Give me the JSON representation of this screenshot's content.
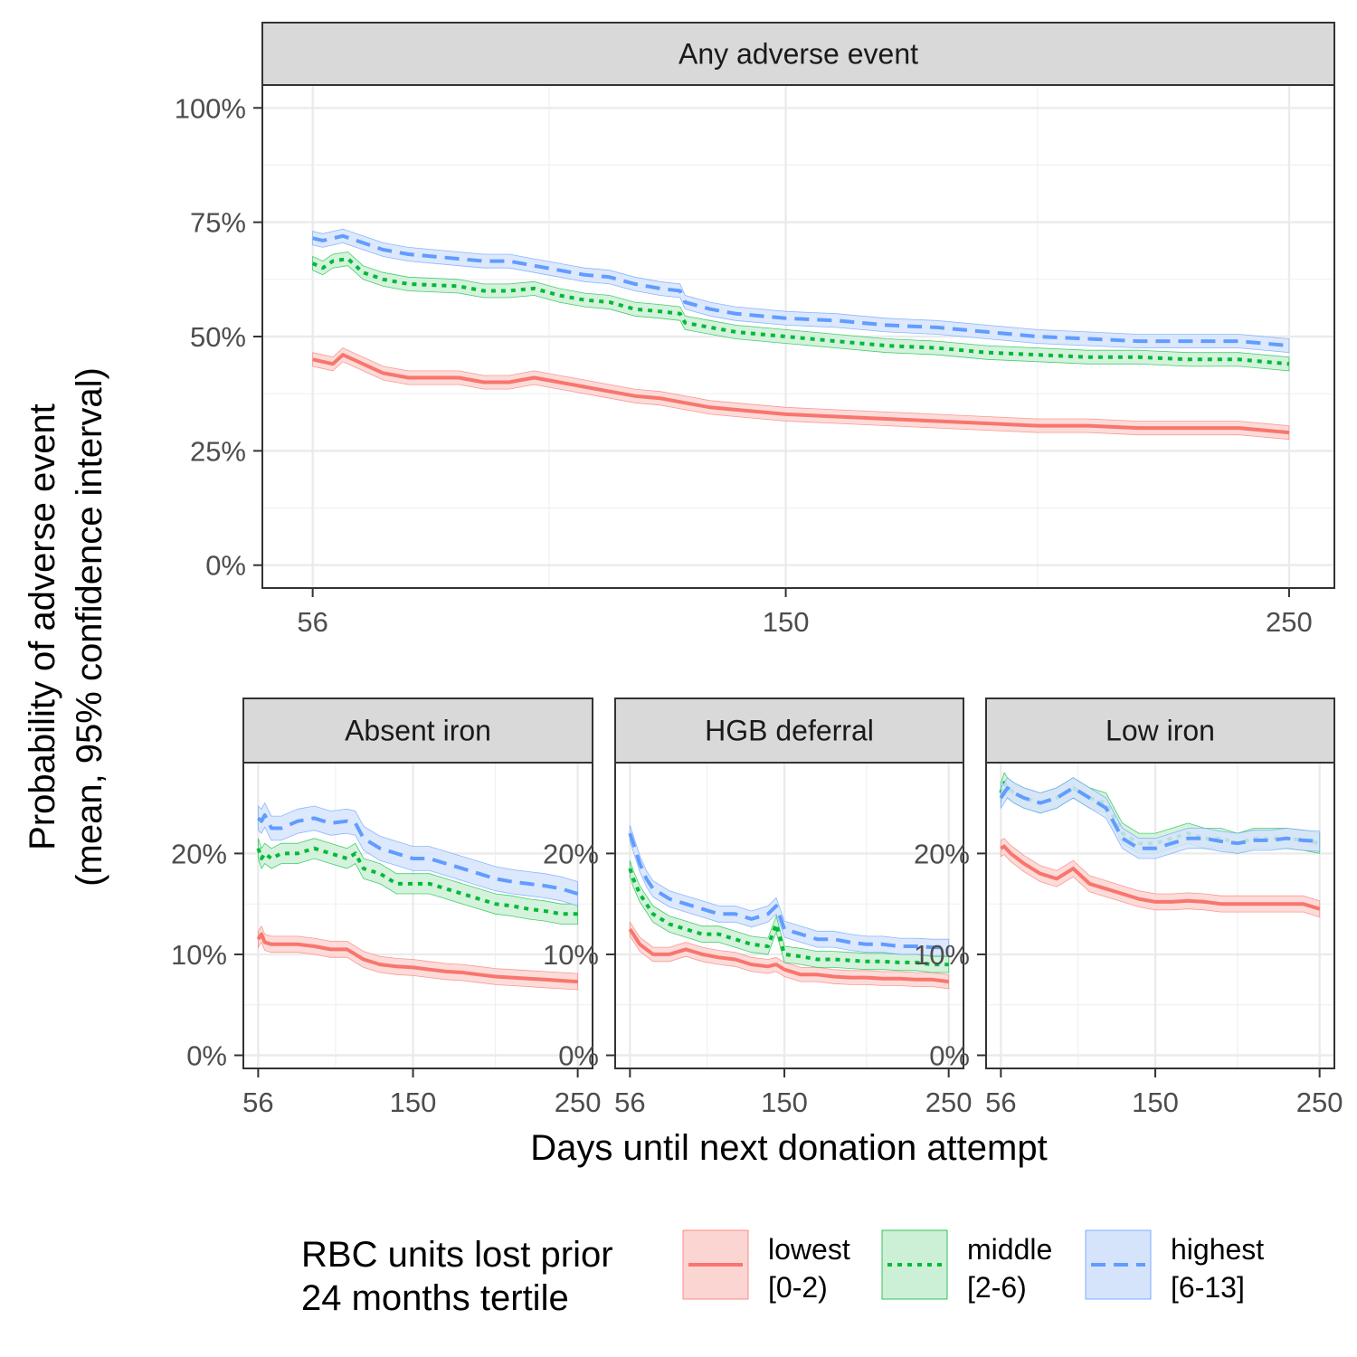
{
  "chart_data": {
    "type": "line",
    "ylabel_lines": [
      "Probability of adverse event",
      "(mean, 95% confidence interval)"
    ],
    "xlabel": "Days until next donation attempt",
    "x_ticks": [
      56,
      150,
      250
    ],
    "legend": {
      "title_lines": [
        "RBC units lost prior",
        "24 months tertile"
      ],
      "placement": "bottom",
      "entries": [
        {
          "key": "lowest",
          "label_lines": [
            "lowest",
            "[0-2)"
          ],
          "color": "#F8766D",
          "fill": "#fbd5d2",
          "dash": "solid"
        },
        {
          "key": "middle",
          "label_lines": [
            "middle",
            "[2-6)"
          ],
          "color": "#00BA38",
          "fill": "#ccf0d6",
          "dash": "dotted"
        },
        {
          "key": "highest",
          "label_lines": [
            "highest",
            "[6-13]"
          ],
          "color": "#619CFF",
          "fill": "#d6e4fb",
          "dash": "dashed"
        }
      ]
    },
    "panels": [
      {
        "title": "Any adverse event",
        "xlim": [
          46,
          259
        ],
        "ylim": [
          -0.05,
          1.05
        ],
        "y_ticks": [
          0,
          0.25,
          0.5,
          0.75,
          1.0
        ],
        "y_tick_labels": [
          "0%",
          "25%",
          "50%",
          "75%",
          "100%"
        ],
        "series": [
          {
            "key": "lowest",
            "x": [
              56,
              60,
              62,
              66,
              70,
              75,
              85,
              90,
              95,
              100,
              105,
              110,
              115,
              120,
              125,
              130,
              135,
              140,
              150,
              160,
              170,
              180,
              190,
              200,
              210,
              220,
              230,
              240,
              250
            ],
            "y": [
              0.45,
              0.44,
              0.46,
              0.44,
              0.42,
              0.41,
              0.41,
              0.4,
              0.4,
              0.41,
              0.4,
              0.39,
              0.38,
              0.37,
              0.365,
              0.355,
              0.345,
              0.34,
              0.33,
              0.325,
              0.32,
              0.315,
              0.31,
              0.305,
              0.305,
              0.3,
              0.3,
              0.3,
              0.29
            ],
            "ci": 0.015
          },
          {
            "key": "middle",
            "x": [
              56,
              58,
              60,
              63,
              66,
              70,
              75,
              85,
              90,
              95,
              100,
              105,
              110,
              115,
              120,
              125,
              129,
              130,
              135,
              140,
              150,
              160,
              170,
              180,
              190,
              200,
              210,
              220,
              230,
              240,
              250
            ],
            "y": [
              0.66,
              0.65,
              0.665,
              0.67,
              0.64,
              0.625,
              0.615,
              0.61,
              0.6,
              0.6,
              0.605,
              0.59,
              0.58,
              0.575,
              0.56,
              0.555,
              0.55,
              0.53,
              0.52,
              0.51,
              0.5,
              0.49,
              0.48,
              0.475,
              0.465,
              0.46,
              0.455,
              0.455,
              0.45,
              0.45,
              0.44
            ],
            "ci": 0.015
          },
          {
            "key": "highest",
            "x": [
              56,
              58,
              62,
              66,
              70,
              75,
              85,
              90,
              95,
              100,
              105,
              110,
              115,
              120,
              125,
              129,
              130,
              135,
              140,
              150,
              160,
              170,
              180,
              190,
              200,
              210,
              220,
              230,
              240,
              250
            ],
            "y": [
              0.715,
              0.71,
              0.72,
              0.705,
              0.69,
              0.68,
              0.67,
              0.665,
              0.665,
              0.655,
              0.645,
              0.635,
              0.63,
              0.615,
              0.605,
              0.6,
              0.575,
              0.56,
              0.55,
              0.54,
              0.535,
              0.525,
              0.52,
              0.51,
              0.5,
              0.495,
              0.49,
              0.49,
              0.49,
              0.48
            ],
            "ci": 0.015
          }
        ]
      },
      {
        "title": "Absent iron",
        "xlim": [
          47,
          259
        ],
        "ylim": [
          -0.013,
          0.29
        ],
        "y_ticks": [
          0,
          0.1,
          0.2
        ],
        "y_tick_labels": [
          "0%",
          "10%",
          "20%"
        ],
        "series": [
          {
            "key": "lowest",
            "x": [
              56,
              58,
              60,
              64,
              70,
              80,
              90,
              100,
              110,
              120,
              130,
              140,
              150,
              160,
              170,
              180,
              190,
              200,
              210,
              220,
              230,
              240,
              250
            ],
            "y": [
              0.115,
              0.12,
              0.112,
              0.11,
              0.11,
              0.11,
              0.108,
              0.105,
              0.105,
              0.095,
              0.09,
              0.088,
              0.087,
              0.085,
              0.083,
              0.082,
              0.08,
              0.078,
              0.077,
              0.076,
              0.075,
              0.074,
              0.073
            ],
            "ci": 0.008
          },
          {
            "key": "middle",
            "x": [
              56,
              58,
              60,
              64,
              70,
              80,
              90,
              100,
              110,
              115,
              120,
              130,
              140,
              150,
              160,
              170,
              180,
              190,
              200,
              210,
              220,
              230,
              240,
              250
            ],
            "y": [
              0.205,
              0.195,
              0.2,
              0.195,
              0.2,
              0.2,
              0.205,
              0.2,
              0.195,
              0.2,
              0.185,
              0.18,
              0.17,
              0.17,
              0.17,
              0.165,
              0.16,
              0.155,
              0.15,
              0.148,
              0.145,
              0.143,
              0.14,
              0.14
            ],
            "ci": 0.01
          },
          {
            "key": "highest",
            "x": [
              56,
              58,
              60,
              64,
              70,
              80,
              90,
              100,
              110,
              115,
              120,
              130,
              140,
              150,
              160,
              170,
              180,
              190,
              200,
              210,
              220,
              230,
              240,
              250
            ],
            "y": [
              0.235,
              0.232,
              0.238,
              0.225,
              0.225,
              0.232,
              0.235,
              0.23,
              0.232,
              0.23,
              0.215,
              0.205,
              0.2,
              0.195,
              0.195,
              0.19,
              0.185,
              0.18,
              0.175,
              0.172,
              0.17,
              0.168,
              0.165,
              0.16
            ],
            "ci": 0.012
          }
        ]
      },
      {
        "title": "HGB deferral",
        "xlim": [
          47,
          259
        ],
        "ylim": [
          -0.013,
          0.29
        ],
        "y_ticks": [
          0,
          0.1,
          0.2
        ],
        "y_tick_labels": [
          "0%",
          "10%",
          "20%"
        ],
        "series": [
          {
            "key": "lowest",
            "x": [
              56,
              58,
              62,
              70,
              80,
              90,
              100,
              110,
              120,
              130,
              140,
              145,
              150,
              160,
              170,
              180,
              190,
              200,
              210,
              220,
              230,
              240,
              250
            ],
            "y": [
              0.125,
              0.12,
              0.11,
              0.1,
              0.1,
              0.105,
              0.1,
              0.097,
              0.095,
              0.09,
              0.088,
              0.09,
              0.085,
              0.08,
              0.08,
              0.078,
              0.077,
              0.077,
              0.076,
              0.076,
              0.075,
              0.075,
              0.073
            ],
            "ci": 0.007
          },
          {
            "key": "middle",
            "x": [
              56,
              58,
              62,
              66,
              70,
              80,
              90,
              100,
              110,
              120,
              130,
              140,
              145,
              150,
              160,
              170,
              180,
              190,
              200,
              210,
              220,
              230,
              240,
              250
            ],
            "y": [
              0.185,
              0.175,
              0.16,
              0.15,
              0.14,
              0.13,
              0.125,
              0.12,
              0.12,
              0.115,
              0.11,
              0.108,
              0.13,
              0.1,
              0.098,
              0.095,
              0.095,
              0.094,
              0.093,
              0.093,
              0.092,
              0.092,
              0.09,
              0.09
            ],
            "ci": 0.008
          },
          {
            "key": "highest",
            "x": [
              56,
              58,
              62,
              66,
              70,
              80,
              90,
              100,
              110,
              120,
              130,
              140,
              145,
              150,
              160,
              170,
              180,
              190,
              200,
              210,
              220,
              230,
              240,
              250
            ],
            "y": [
              0.22,
              0.21,
              0.19,
              0.175,
              0.165,
              0.155,
              0.15,
              0.145,
              0.14,
              0.14,
              0.135,
              0.14,
              0.148,
              0.125,
              0.12,
              0.115,
              0.115,
              0.112,
              0.11,
              0.11,
              0.108,
              0.108,
              0.107,
              0.107
            ],
            "ci": 0.008
          }
        ]
      },
      {
        "title": "Low iron",
        "xlim": [
          47,
          259
        ],
        "ylim": [
          -0.013,
          0.29
        ],
        "y_ticks": [
          0,
          0.1,
          0.2
        ],
        "y_tick_labels": [
          "0%",
          "10%",
          "20%"
        ],
        "series": [
          {
            "key": "lowest",
            "x": [
              56,
              58,
              62,
              66,
              70,
              80,
              90,
              100,
              110,
              120,
              130,
              140,
              150,
              160,
              170,
              180,
              190,
              200,
              210,
              220,
              230,
              240,
              250
            ],
            "y": [
              0.205,
              0.207,
              0.2,
              0.195,
              0.19,
              0.18,
              0.175,
              0.185,
              0.17,
              0.165,
              0.16,
              0.155,
              0.152,
              0.152,
              0.153,
              0.152,
              0.15,
              0.15,
              0.15,
              0.15,
              0.15,
              0.15,
              0.145
            ],
            "ci": 0.008
          },
          {
            "key": "middle",
            "x": [
              56,
              58,
              60,
              64,
              70,
              80,
              90,
              100,
              110,
              120,
              130,
              140,
              150,
              160,
              170,
              180,
              190,
              200,
              210,
              220,
              230,
              240,
              250
            ],
            "y": [
              0.26,
              0.27,
              0.265,
              0.26,
              0.255,
              0.25,
              0.255,
              0.265,
              0.255,
              0.25,
              0.22,
              0.21,
              0.21,
              0.215,
              0.22,
              0.215,
              0.215,
              0.21,
              0.215,
              0.215,
              0.215,
              0.213,
              0.21
            ],
            "ci": 0.01
          },
          {
            "key": "highest",
            "x": [
              56,
              58,
              60,
              64,
              70,
              80,
              90,
              100,
              110,
              120,
              130,
              140,
              150,
              160,
              170,
              180,
              190,
              200,
              210,
              220,
              230,
              240,
              250
            ],
            "y": [
              0.255,
              0.26,
              0.265,
              0.26,
              0.255,
              0.25,
              0.255,
              0.265,
              0.255,
              0.245,
              0.215,
              0.205,
              0.205,
              0.21,
              0.215,
              0.215,
              0.212,
              0.21,
              0.213,
              0.213,
              0.215,
              0.213,
              0.212
            ],
            "ci": 0.01
          }
        ]
      }
    ]
  }
}
